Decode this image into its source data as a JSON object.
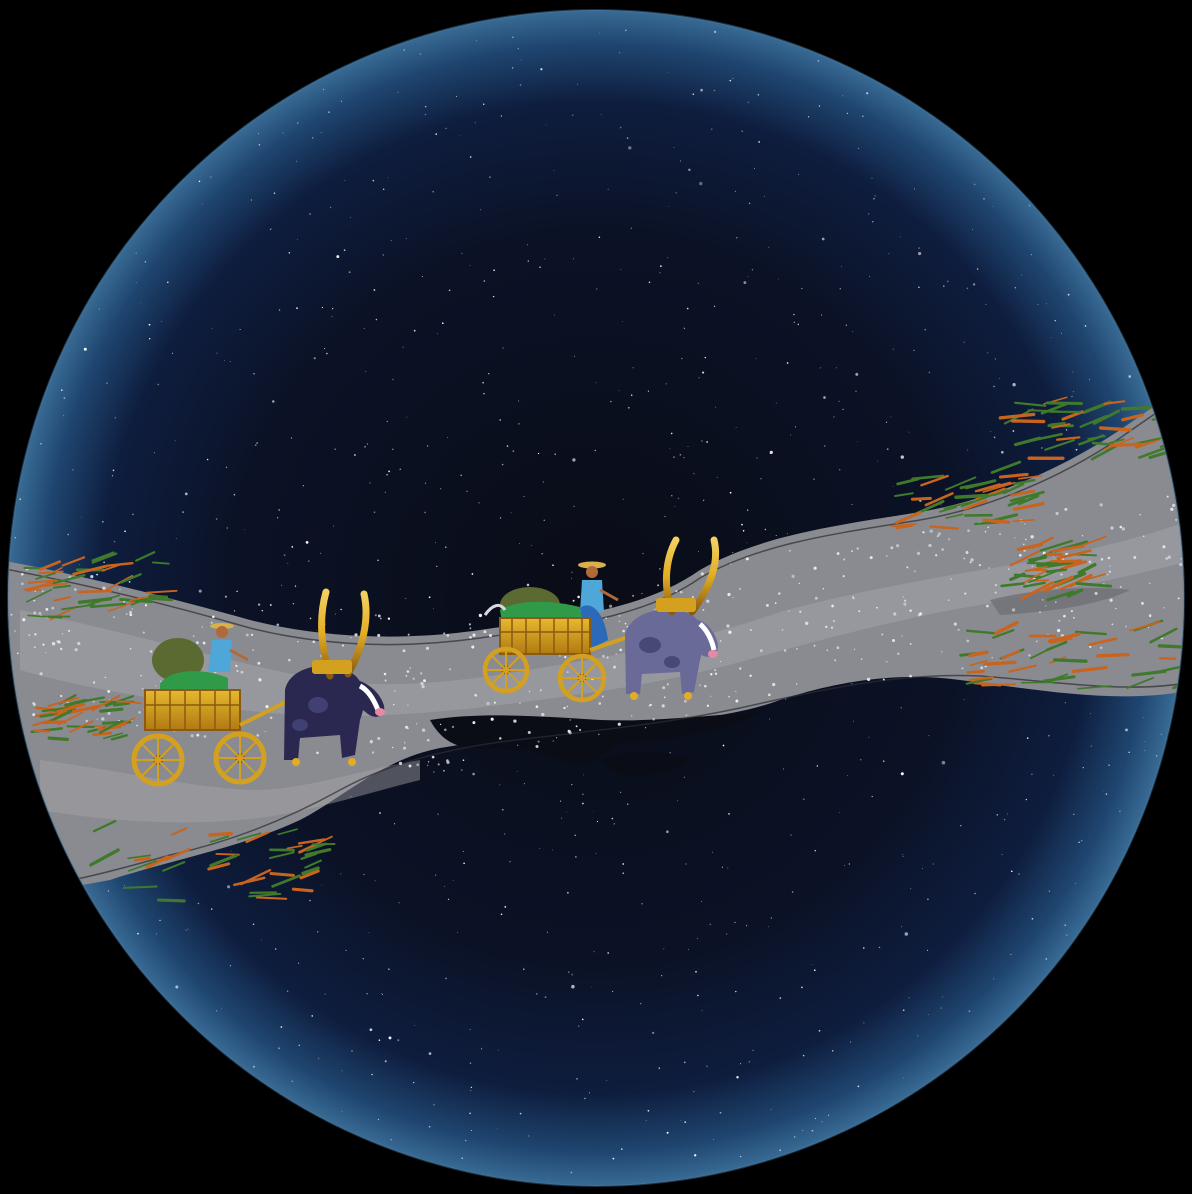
{
  "scene": {
    "colors": {
      "background": "#000000",
      "sky_center": "#0a0c16",
      "sky_mid": "#0c1530",
      "sky_edge": "#2e5b86",
      "river": "#8a8b90",
      "river_dark": "#6f7076",
      "river_light": "#a3a4a9",
      "grass_green": "#3f7a2c",
      "grass_orange": "#c8641e",
      "wood": "#d3a020",
      "wood_dark": "#8a5a10",
      "ox_left": "#2a2850",
      "ox_right": "#6a6a98",
      "horn": "#d9a11a",
      "driver_shirt": "#4fa6d8",
      "driver_skin": "#b06a3a",
      "cargo_green": "#2f9a48",
      "cargo_olive": "#5a6a30"
    },
    "elements": [
      "starry-night-sky",
      "milky-way-river",
      "reed-grass",
      "ox-cart-left",
      "ox-cart-right"
    ]
  }
}
